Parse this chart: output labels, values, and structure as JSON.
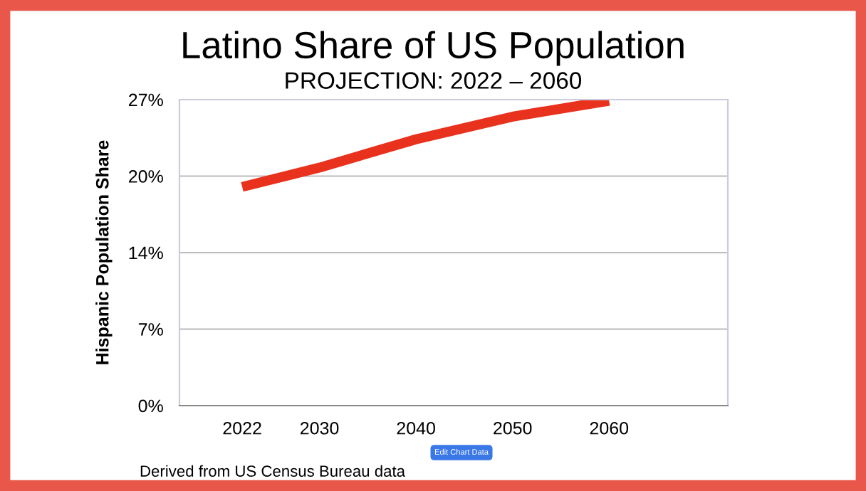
{
  "chart_data": {
    "type": "line",
    "title": "Latino Share of US Population",
    "subtitle": "PROJECTION: 2022 – 2060",
    "ylabel": "Hispanic Population Share",
    "x": [
      2022,
      2030,
      2040,
      2050,
      2060
    ],
    "series": [
      {
        "color": "#e8321e",
        "values": [
          19.3,
          21.0,
          23.5,
          25.5,
          26.9
        ]
      }
    ],
    "xlim": [
      2015.5,
      2072.3
    ],
    "xticks": [
      2022,
      2030,
      2040,
      2050,
      2060
    ],
    "ylim": [
      0,
      27
    ],
    "yticks": [
      {
        "value": 0,
        "label": "0%"
      },
      {
        "value": 6.75,
        "label": "7%"
      },
      {
        "value": 13.5,
        "label": "14%"
      },
      {
        "value": 20.25,
        "label": "20%"
      },
      {
        "value": 27,
        "label": "27%"
      }
    ],
    "grid": "y",
    "marker": "none",
    "line_style": "solid",
    "annotations": [
      "Edit Chart Data",
      "Derived from US Census Bureau data"
    ]
  }
}
